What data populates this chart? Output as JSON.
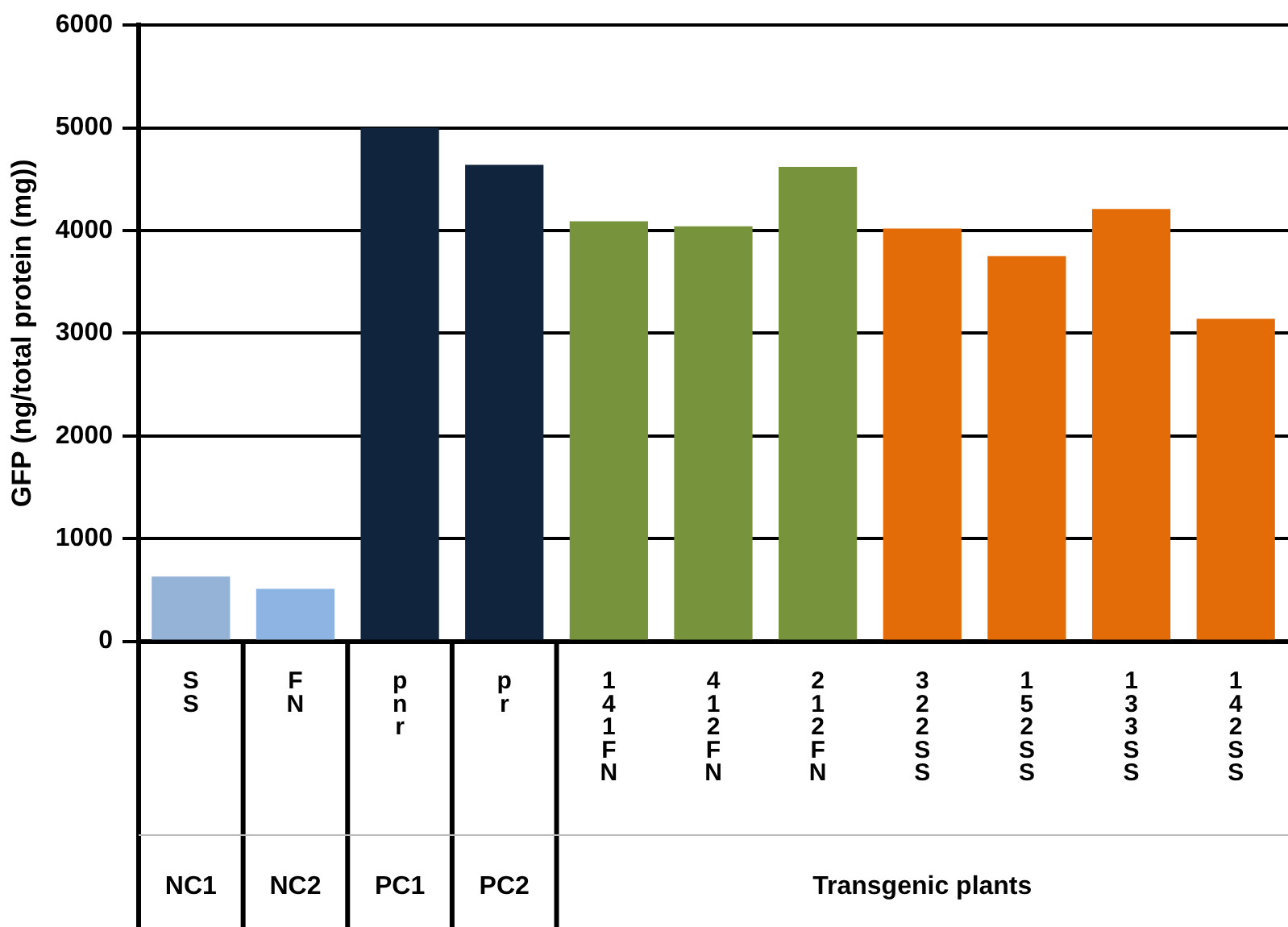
{
  "chart_data": {
    "type": "bar",
    "ylabel": "GFP (ng/total protein (mg))",
    "categories": [
      "SS",
      "FN",
      "pnr",
      "pr",
      "141FN",
      "412FN",
      "212FN",
      "322SS",
      "152SS",
      "133SS",
      "142SS"
    ],
    "values": [
      630,
      510,
      5000,
      4640,
      4090,
      4040,
      4620,
      4020,
      3750,
      4210,
      3140
    ],
    "colors": [
      "#95b3d7",
      "#8db4e2",
      "#10243e",
      "#10243e",
      "#77933c",
      "#77933c",
      "#77933c",
      "#e36c09",
      "#e36c09",
      "#e36c09",
      "#e36c09"
    ],
    "ylim": [
      0,
      6000
    ],
    "yticks": [
      0,
      1000,
      2000,
      3000,
      4000,
      5000,
      6000
    ],
    "grid": "y",
    "legend": false,
    "annotations": [
      "NC1",
      "NC2",
      "PC1",
      "PC2",
      "Transgenic plants"
    ]
  }
}
